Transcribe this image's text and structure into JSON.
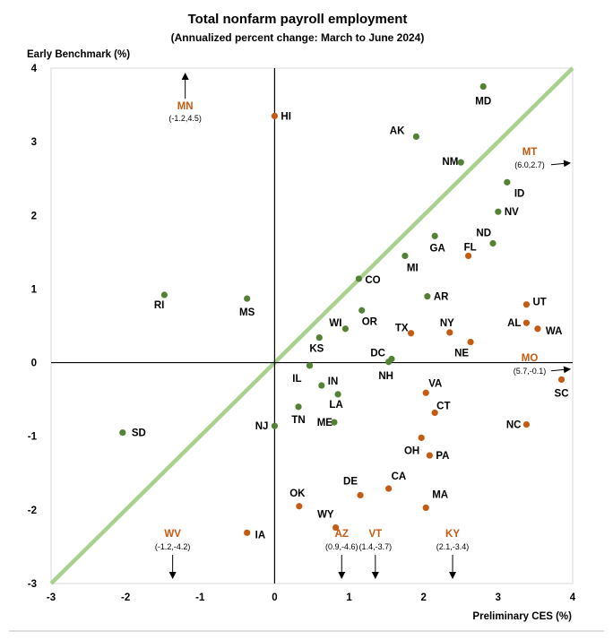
{
  "chart_data": {
    "type": "scatter",
    "title": "Total nonfarm payroll employment",
    "subtitle": "(Annualized percent change: March to June 2024)",
    "xlabel": "Preliminary CES (%)",
    "ylabel": "Early Benchmark (%)",
    "xlim": [
      -3,
      4
    ],
    "ylim": [
      -3,
      4
    ],
    "xticks": [
      "-3",
      "-2",
      "-1",
      "0",
      "1",
      "2",
      "3",
      "4"
    ],
    "yticks": [
      "-3",
      "-2",
      "-1",
      "0",
      "1",
      "2",
      "3",
      "4"
    ],
    "grid": false,
    "reference_line": "y = x",
    "colors": {
      "green": "#548235",
      "orange": "#c55a11",
      "diagonal": "#a9d18e"
    },
    "points": [
      {
        "label": "MD",
        "x": 2.8,
        "y": 3.75,
        "color": "green"
      },
      {
        "label": "AK",
        "x": 1.9,
        "y": 3.07,
        "color": "green"
      },
      {
        "label": "NM",
        "x": 2.5,
        "y": 2.72,
        "color": "green"
      },
      {
        "label": "ID",
        "x": 3.12,
        "y": 2.45,
        "color": "green"
      },
      {
        "label": "NV",
        "x": 3.0,
        "y": 2.05,
        "color": "green"
      },
      {
        "label": "GA",
        "x": 2.15,
        "y": 1.72,
        "color": "green"
      },
      {
        "label": "ND",
        "x": 2.93,
        "y": 1.62,
        "color": "green"
      },
      {
        "label": "MI",
        "x": 1.75,
        "y": 1.45,
        "color": "green"
      },
      {
        "label": "CO",
        "x": 1.13,
        "y": 1.14,
        "color": "green"
      },
      {
        "label": "AR",
        "x": 2.05,
        "y": 0.9,
        "color": "green"
      },
      {
        "label": "RI",
        "x": -1.48,
        "y": 0.92,
        "color": "green"
      },
      {
        "label": "MS",
        "x": -0.37,
        "y": 0.87,
        "color": "green"
      },
      {
        "label": "OR",
        "x": 1.17,
        "y": 0.71,
        "color": "green"
      },
      {
        "label": "WI",
        "x": 0.95,
        "y": 0.46,
        "color": "green"
      },
      {
        "label": "KS",
        "x": 0.6,
        "y": 0.34,
        "color": "green"
      },
      {
        "label": "DC",
        "x": 1.57,
        "y": 0.05,
        "color": "green"
      },
      {
        "label": "NH",
        "x": 1.53,
        "y": 0.01,
        "color": "green"
      },
      {
        "label": "IL",
        "x": 0.47,
        "y": -0.04,
        "color": "green"
      },
      {
        "label": "IN",
        "x": 0.63,
        "y": -0.31,
        "color": "green"
      },
      {
        "label": "LA",
        "x": 0.85,
        "y": -0.43,
        "color": "green"
      },
      {
        "label": "TN",
        "x": 0.32,
        "y": -0.6,
        "color": "green"
      },
      {
        "label": "ME",
        "x": 0.8,
        "y": -0.81,
        "color": "green"
      },
      {
        "label": "NJ",
        "x": 0.0,
        "y": -0.86,
        "color": "green"
      },
      {
        "label": "SD",
        "x": -2.04,
        "y": -0.95,
        "color": "green"
      },
      {
        "label": "HI",
        "x": 0.0,
        "y": 3.35,
        "color": "orange"
      },
      {
        "label": "FL",
        "x": 2.6,
        "y": 1.45,
        "color": "orange"
      },
      {
        "label": "UT",
        "x": 3.38,
        "y": 0.79,
        "color": "orange"
      },
      {
        "label": "AL",
        "x": 3.38,
        "y": 0.54,
        "color": "orange"
      },
      {
        "label": "WA",
        "x": 3.53,
        "y": 0.46,
        "color": "orange"
      },
      {
        "label": "TX",
        "x": 1.83,
        "y": 0.4,
        "color": "orange"
      },
      {
        "label": "NY",
        "x": 2.35,
        "y": 0.41,
        "color": "orange"
      },
      {
        "label": "NE",
        "x": 2.63,
        "y": 0.28,
        "color": "orange"
      },
      {
        "label": "SC",
        "x": 3.85,
        "y": -0.23,
        "color": "orange"
      },
      {
        "label": "VA",
        "x": 2.03,
        "y": -0.41,
        "color": "orange"
      },
      {
        "label": "CT",
        "x": 2.15,
        "y": -0.68,
        "color": "orange"
      },
      {
        "label": "NC",
        "x": 3.38,
        "y": -0.84,
        "color": "orange"
      },
      {
        "label": "OH",
        "x": 1.97,
        "y": -1.02,
        "color": "orange"
      },
      {
        "label": "PA",
        "x": 2.08,
        "y": -1.26,
        "color": "orange"
      },
      {
        "label": "CA",
        "x": 1.53,
        "y": -1.71,
        "color": "orange"
      },
      {
        "label": "DE",
        "x": 1.15,
        "y": -1.8,
        "color": "orange"
      },
      {
        "label": "OK",
        "x": 0.33,
        "y": -1.95,
        "color": "orange"
      },
      {
        "label": "MA",
        "x": 2.03,
        "y": -1.97,
        "color": "orange"
      },
      {
        "label": "WY",
        "x": 0.82,
        "y": -2.24,
        "color": "orange"
      },
      {
        "label": "IA",
        "x": -0.37,
        "y": -2.31,
        "color": "orange"
      }
    ],
    "outliers": [
      {
        "label": "MN",
        "coords": "(-1.2,4.5)",
        "direction": "up",
        "x": -1.2,
        "y": 4.5
      },
      {
        "label": "MT",
        "coords": "(6.0,2.7)",
        "direction": "right",
        "x": 6.0,
        "y": 2.7
      },
      {
        "label": "MO",
        "coords": "(5.7,-0.1)",
        "direction": "right",
        "x": 5.7,
        "y": -0.1
      },
      {
        "label": "WV",
        "coords": "(-1.2,-4.2)",
        "direction": "down",
        "x": -1.2,
        "y": -4.2
      },
      {
        "label": "AZ",
        "coords": "(0.9,-4.6)",
        "direction": "down",
        "x": 0.9,
        "y": -4.6
      },
      {
        "label": "VT",
        "coords": "(1.4,-3.7)",
        "direction": "down",
        "x": 1.4,
        "y": -3.7
      },
      {
        "label": "KY",
        "coords": "(2.1,-3.4)",
        "direction": "down",
        "x": 2.1,
        "y": -3.4
      }
    ]
  }
}
